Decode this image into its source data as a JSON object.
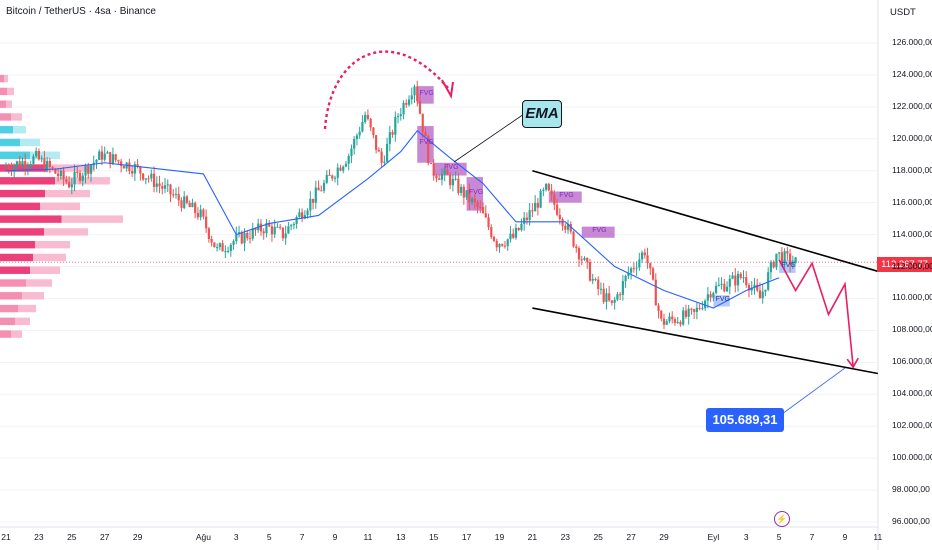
{
  "header": {
    "title": "Bitcoin / TetherUS · 4sa · Binance",
    "currency": "USDT"
  },
  "price_tag": {
    "value": "112.267,77",
    "color": "#f23645"
  },
  "annotations": {
    "ema_label": "EMA",
    "target_label": "105.689,31",
    "fvg_label": "FVG"
  },
  "icons": {
    "event_icon": "lightning-bolt-icon"
  },
  "colors": {
    "up": "#26a69a",
    "down": "#ef5350",
    "ema": "#2962ff",
    "fvg": "#9c27b0",
    "arrow": "#e91e63",
    "price_line": "#f23645"
  },
  "chart_data": {
    "type": "candlestick",
    "title": "Bitcoin / TetherUS · 4sa · Binance",
    "y_axis": {
      "unit": "USDT",
      "ticks": [
        "126.000,00",
        "124.000,00",
        "122.000,00",
        "120.000,00",
        "118.000,00",
        "116.000,00",
        "114.000,00",
        "112.000,00",
        "110.000,00",
        "108.000,00",
        "106.000,00",
        "104.000,00",
        "102.000,00",
        "100.000,00",
        "98.000,00",
        "96.000,00"
      ],
      "range": [
        95500,
        127000
      ]
    },
    "x_axis": {
      "ticks": [
        "21",
        "23",
        "25",
        "27",
        "29",
        "Ağu",
        "3",
        "5",
        "7",
        "9",
        "11",
        "13",
        "15",
        "17",
        "19",
        "21",
        "23",
        "25",
        "27",
        "29",
        "Eyl",
        "3",
        "5",
        "7",
        "9",
        "11"
      ]
    },
    "current_price": 112267.77,
    "target_price": 105689.31,
    "price_path": [
      {
        "x": "Jul 21",
        "y": 118200
      },
      {
        "x": "Jul 23",
        "y": 118800
      },
      {
        "x": "Jul 25",
        "y": 117200
      },
      {
        "x": "Jul 27",
        "y": 119000
      },
      {
        "x": "Jul 29",
        "y": 118200
      },
      {
        "x": "Aug 1",
        "y": 115200
      },
      {
        "x": "Aug 2",
        "y": 113000
      },
      {
        "x": "Aug 3",
        "y": 113600
      },
      {
        "x": "Aug 5",
        "y": 114500
      },
      {
        "x": "Aug 6",
        "y": 114000
      },
      {
        "x": "Aug 8",
        "y": 116500
      },
      {
        "x": "Aug 10",
        "y": 119000
      },
      {
        "x": "Aug 11",
        "y": 121500
      },
      {
        "x": "Aug 12",
        "y": 118500
      },
      {
        "x": "Aug 13",
        "y": 121500
      },
      {
        "x": "Aug 14",
        "y": 123500
      },
      {
        "x": "Aug 15",
        "y": 118000
      },
      {
        "x": "Aug 16",
        "y": 117600
      },
      {
        "x": "Aug 18",
        "y": 115500
      },
      {
        "x": "Aug 19",
        "y": 113500
      },
      {
        "x": "Aug 20",
        "y": 113800
      },
      {
        "x": "Aug 22",
        "y": 116800
      },
      {
        "x": "Aug 23",
        "y": 115000
      },
      {
        "x": "Aug 25",
        "y": 110800
      },
      {
        "x": "Aug 26",
        "y": 109500
      },
      {
        "x": "Aug 27",
        "y": 111600
      },
      {
        "x": "Aug 28",
        "y": 113000
      },
      {
        "x": "Aug 29",
        "y": 108500
      },
      {
        "x": "Aug 31",
        "y": 109000
      },
      {
        "x": "Sep 1",
        "y": 110500
      },
      {
        "x": "Sep 3",
        "y": 111400
      },
      {
        "x": "Sep 4",
        "y": 110000
      },
      {
        "x": "Sep 5",
        "y": 112800
      },
      {
        "x": "Sep 6",
        "y": 112267.77
      }
    ],
    "ema": [
      {
        "x": "Jul 21",
        "y": 118000
      },
      {
        "x": "Jul 24",
        "y": 118100
      },
      {
        "x": "Jul 27",
        "y": 118500
      },
      {
        "x": "Aug 1",
        "y": 117800
      },
      {
        "x": "Aug 3",
        "y": 114000
      },
      {
        "x": "Aug 5",
        "y": 114700
      },
      {
        "x": "Aug 8",
        "y": 115200
      },
      {
        "x": "Aug 11",
        "y": 117500
      },
      {
        "x": "Aug 13",
        "y": 119200
      },
      {
        "x": "Aug 14",
        "y": 120500
      },
      {
        "x": "Aug 16",
        "y": 118800
      },
      {
        "x": "Aug 18",
        "y": 117200
      },
      {
        "x": "Aug 20",
        "y": 114800
      },
      {
        "x": "Aug 23",
        "y": 114800
      },
      {
        "x": "Aug 26",
        "y": 112000
      },
      {
        "x": "Aug 29",
        "y": 110500
      },
      {
        "x": "Sep 1",
        "y": 109400
      },
      {
        "x": "Sep 3",
        "y": 110500
      },
      {
        "x": "Sep 5",
        "y": 111300
      }
    ],
    "fair_value_gaps": [
      {
        "x_start": "Aug 14",
        "x_end": "Aug 15",
        "y_low": 122200,
        "y_high": 123300
      },
      {
        "x_start": "Aug 14",
        "x_end": "Aug 15",
        "y_low": 118500,
        "y_high": 120800
      },
      {
        "x_start": "Aug 15",
        "x_end": "Aug 17",
        "y_low": 117700,
        "y_high": 118500
      },
      {
        "x_start": "Aug 17",
        "x_end": "Aug 18",
        "y_low": 115500,
        "y_high": 117600
      },
      {
        "x_start": "Aug 22",
        "x_end": "Aug 24",
        "y_low": 116000,
        "y_high": 116700
      },
      {
        "x_start": "Aug 24",
        "x_end": "Aug 26",
        "y_low": 113800,
        "y_high": 114500
      }
    ],
    "bullish_gaps": [
      {
        "x_start": "Sep 1",
        "x_end": "Sep 2",
        "y_low": 109500,
        "y_high": 110200
      },
      {
        "x_start": "Sep 5",
        "x_end": "Sep 6",
        "y_low": 111600,
        "y_high": 112400
      }
    ],
    "channel": {
      "upper": [
        {
          "x": "Aug 21",
          "y": 118000
        },
        {
          "x": "Sep 11",
          "y": 111700
        }
      ],
      "lower": [
        {
          "x": "Aug 21",
          "y": 109400
        },
        {
          "x": "Sep 11",
          "y": 105300
        }
      ]
    },
    "projection": [
      {
        "x": "Sep 5",
        "y": 112400
      },
      {
        "x": "Sep 6",
        "y": 110500
      },
      {
        "x": "Sep 7",
        "y": 112200
      },
      {
        "x": "Sep 8",
        "y": 109000
      },
      {
        "x": "Sep 9",
        "y": 110900
      },
      {
        "x": "Sep 9.5",
        "y": 105700
      }
    ]
  }
}
